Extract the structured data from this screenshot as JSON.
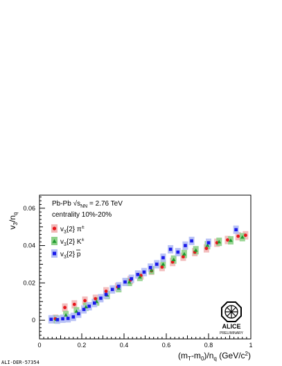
{
  "chart_data": {
    "type": "scatter",
    "xlabel": "(m_T-m_0)/n_q (GeV/c^2)",
    "ylabel": "v_3/n_q",
    "xlim": [
      0.0,
      1.0
    ],
    "ylim": [
      -0.01,
      0.067
    ],
    "x_ticks": [
      0,
      0.2,
      0.4,
      0.6,
      0.8,
      1
    ],
    "x_tick_labels": [
      "0",
      "0.2",
      "0.4",
      "0.6",
      "0.8",
      "1"
    ],
    "y_ticks": [
      0,
      0.02,
      0.04,
      0.06
    ],
    "y_tick_labels": [
      "0",
      "0.02",
      "0.04",
      "0.06"
    ],
    "grid": false,
    "legend_position": "top-left",
    "annotations": {
      "system": "Pb-Pb √s_NN = 2.76 TeV",
      "centrality": "centrality 10%-20%",
      "figure_id": "ALI-DER-57354",
      "logo_text": "ALICE",
      "logo_subtext": "PRELIMINARY"
    },
    "series": [
      {
        "name": "v3{2} π±",
        "legend_label": "v_3{2} π^±",
        "marker": "circle",
        "color": "#e8161b",
        "syst_color": "#f2b7b7",
        "points": [
          {
            "x": 0.075,
            "y": 0.0008
          },
          {
            "x": 0.12,
            "y": 0.0068
          },
          {
            "x": 0.165,
            "y": 0.0085
          },
          {
            "x": 0.215,
            "y": 0.0105
          },
          {
            "x": 0.265,
            "y": 0.0115
          },
          {
            "x": 0.315,
            "y": 0.0155
          },
          {
            "x": 0.37,
            "y": 0.0178
          },
          {
            "x": 0.43,
            "y": 0.0215
          },
          {
            "x": 0.48,
            "y": 0.024
          },
          {
            "x": 0.53,
            "y": 0.0265
          },
          {
            "x": 0.58,
            "y": 0.0285
          },
          {
            "x": 0.63,
            "y": 0.0312
          },
          {
            "x": 0.68,
            "y": 0.034
          },
          {
            "x": 0.735,
            "y": 0.0365
          },
          {
            "x": 0.79,
            "y": 0.0385
          },
          {
            "x": 0.84,
            "y": 0.0415
          },
          {
            "x": 0.89,
            "y": 0.043
          },
          {
            "x": 0.94,
            "y": 0.045
          },
          {
            "x": 0.975,
            "y": 0.0455
          }
        ]
      },
      {
        "name": "v3{2} K±",
        "legend_label": "v_3{2} K^±",
        "marker": "triangle",
        "color": "#1e9a2e",
        "syst_color": "#8fd18a",
        "points": [
          {
            "x": 0.08,
            "y": 0.0005
          },
          {
            "x": 0.125,
            "y": 0.0028
          },
          {
            "x": 0.175,
            "y": 0.0048
          },
          {
            "x": 0.22,
            "y": 0.0072
          },
          {
            "x": 0.27,
            "y": 0.01
          },
          {
            "x": 0.32,
            "y": 0.0135
          },
          {
            "x": 0.375,
            "y": 0.0172
          },
          {
            "x": 0.425,
            "y": 0.0205
          },
          {
            "x": 0.475,
            "y": 0.0232
          },
          {
            "x": 0.53,
            "y": 0.0268
          },
          {
            "x": 0.585,
            "y": 0.03
          },
          {
            "x": 0.635,
            "y": 0.0325
          },
          {
            "x": 0.685,
            "y": 0.0355
          },
          {
            "x": 0.74,
            "y": 0.0375
          },
          {
            "x": 0.795,
            "y": 0.0402
          },
          {
            "x": 0.85,
            "y": 0.042
          },
          {
            "x": 0.905,
            "y": 0.0428
          },
          {
            "x": 0.96,
            "y": 0.0445
          }
        ]
      },
      {
        "name": "v3{2} p p̄",
        "legend_label": "v_3{2} p̄",
        "marker": "square",
        "color": "#1a1aeb",
        "syst_color": "#b3bdf5",
        "points": [
          {
            "x": 0.055,
            "y": 0.0005
          },
          {
            "x": 0.085,
            "y": 0.0003
          },
          {
            "x": 0.11,
            "y": 0.0008
          },
          {
            "x": 0.135,
            "y": 0.001
          },
          {
            "x": 0.16,
            "y": 0.0018
          },
          {
            "x": 0.185,
            "y": 0.0035
          },
          {
            "x": 0.21,
            "y": 0.0058
          },
          {
            "x": 0.235,
            "y": 0.0075
          },
          {
            "x": 0.26,
            "y": 0.0092
          },
          {
            "x": 0.29,
            "y": 0.0118
          },
          {
            "x": 0.315,
            "y": 0.0138
          },
          {
            "x": 0.345,
            "y": 0.0165
          },
          {
            "x": 0.375,
            "y": 0.0182
          },
          {
            "x": 0.405,
            "y": 0.0205
          },
          {
            "x": 0.435,
            "y": 0.0222
          },
          {
            "x": 0.465,
            "y": 0.0245
          },
          {
            "x": 0.495,
            "y": 0.0258
          },
          {
            "x": 0.525,
            "y": 0.0282
          },
          {
            "x": 0.555,
            "y": 0.03
          },
          {
            "x": 0.585,
            "y": 0.0335
          },
          {
            "x": 0.62,
            "y": 0.038
          },
          {
            "x": 0.655,
            "y": 0.0365
          },
          {
            "x": 0.69,
            "y": 0.04
          },
          {
            "x": 0.72,
            "y": 0.0425
          },
          {
            "x": 0.8,
            "y": 0.0415
          },
          {
            "x": 0.93,
            "y": 0.0485
          }
        ]
      }
    ]
  }
}
